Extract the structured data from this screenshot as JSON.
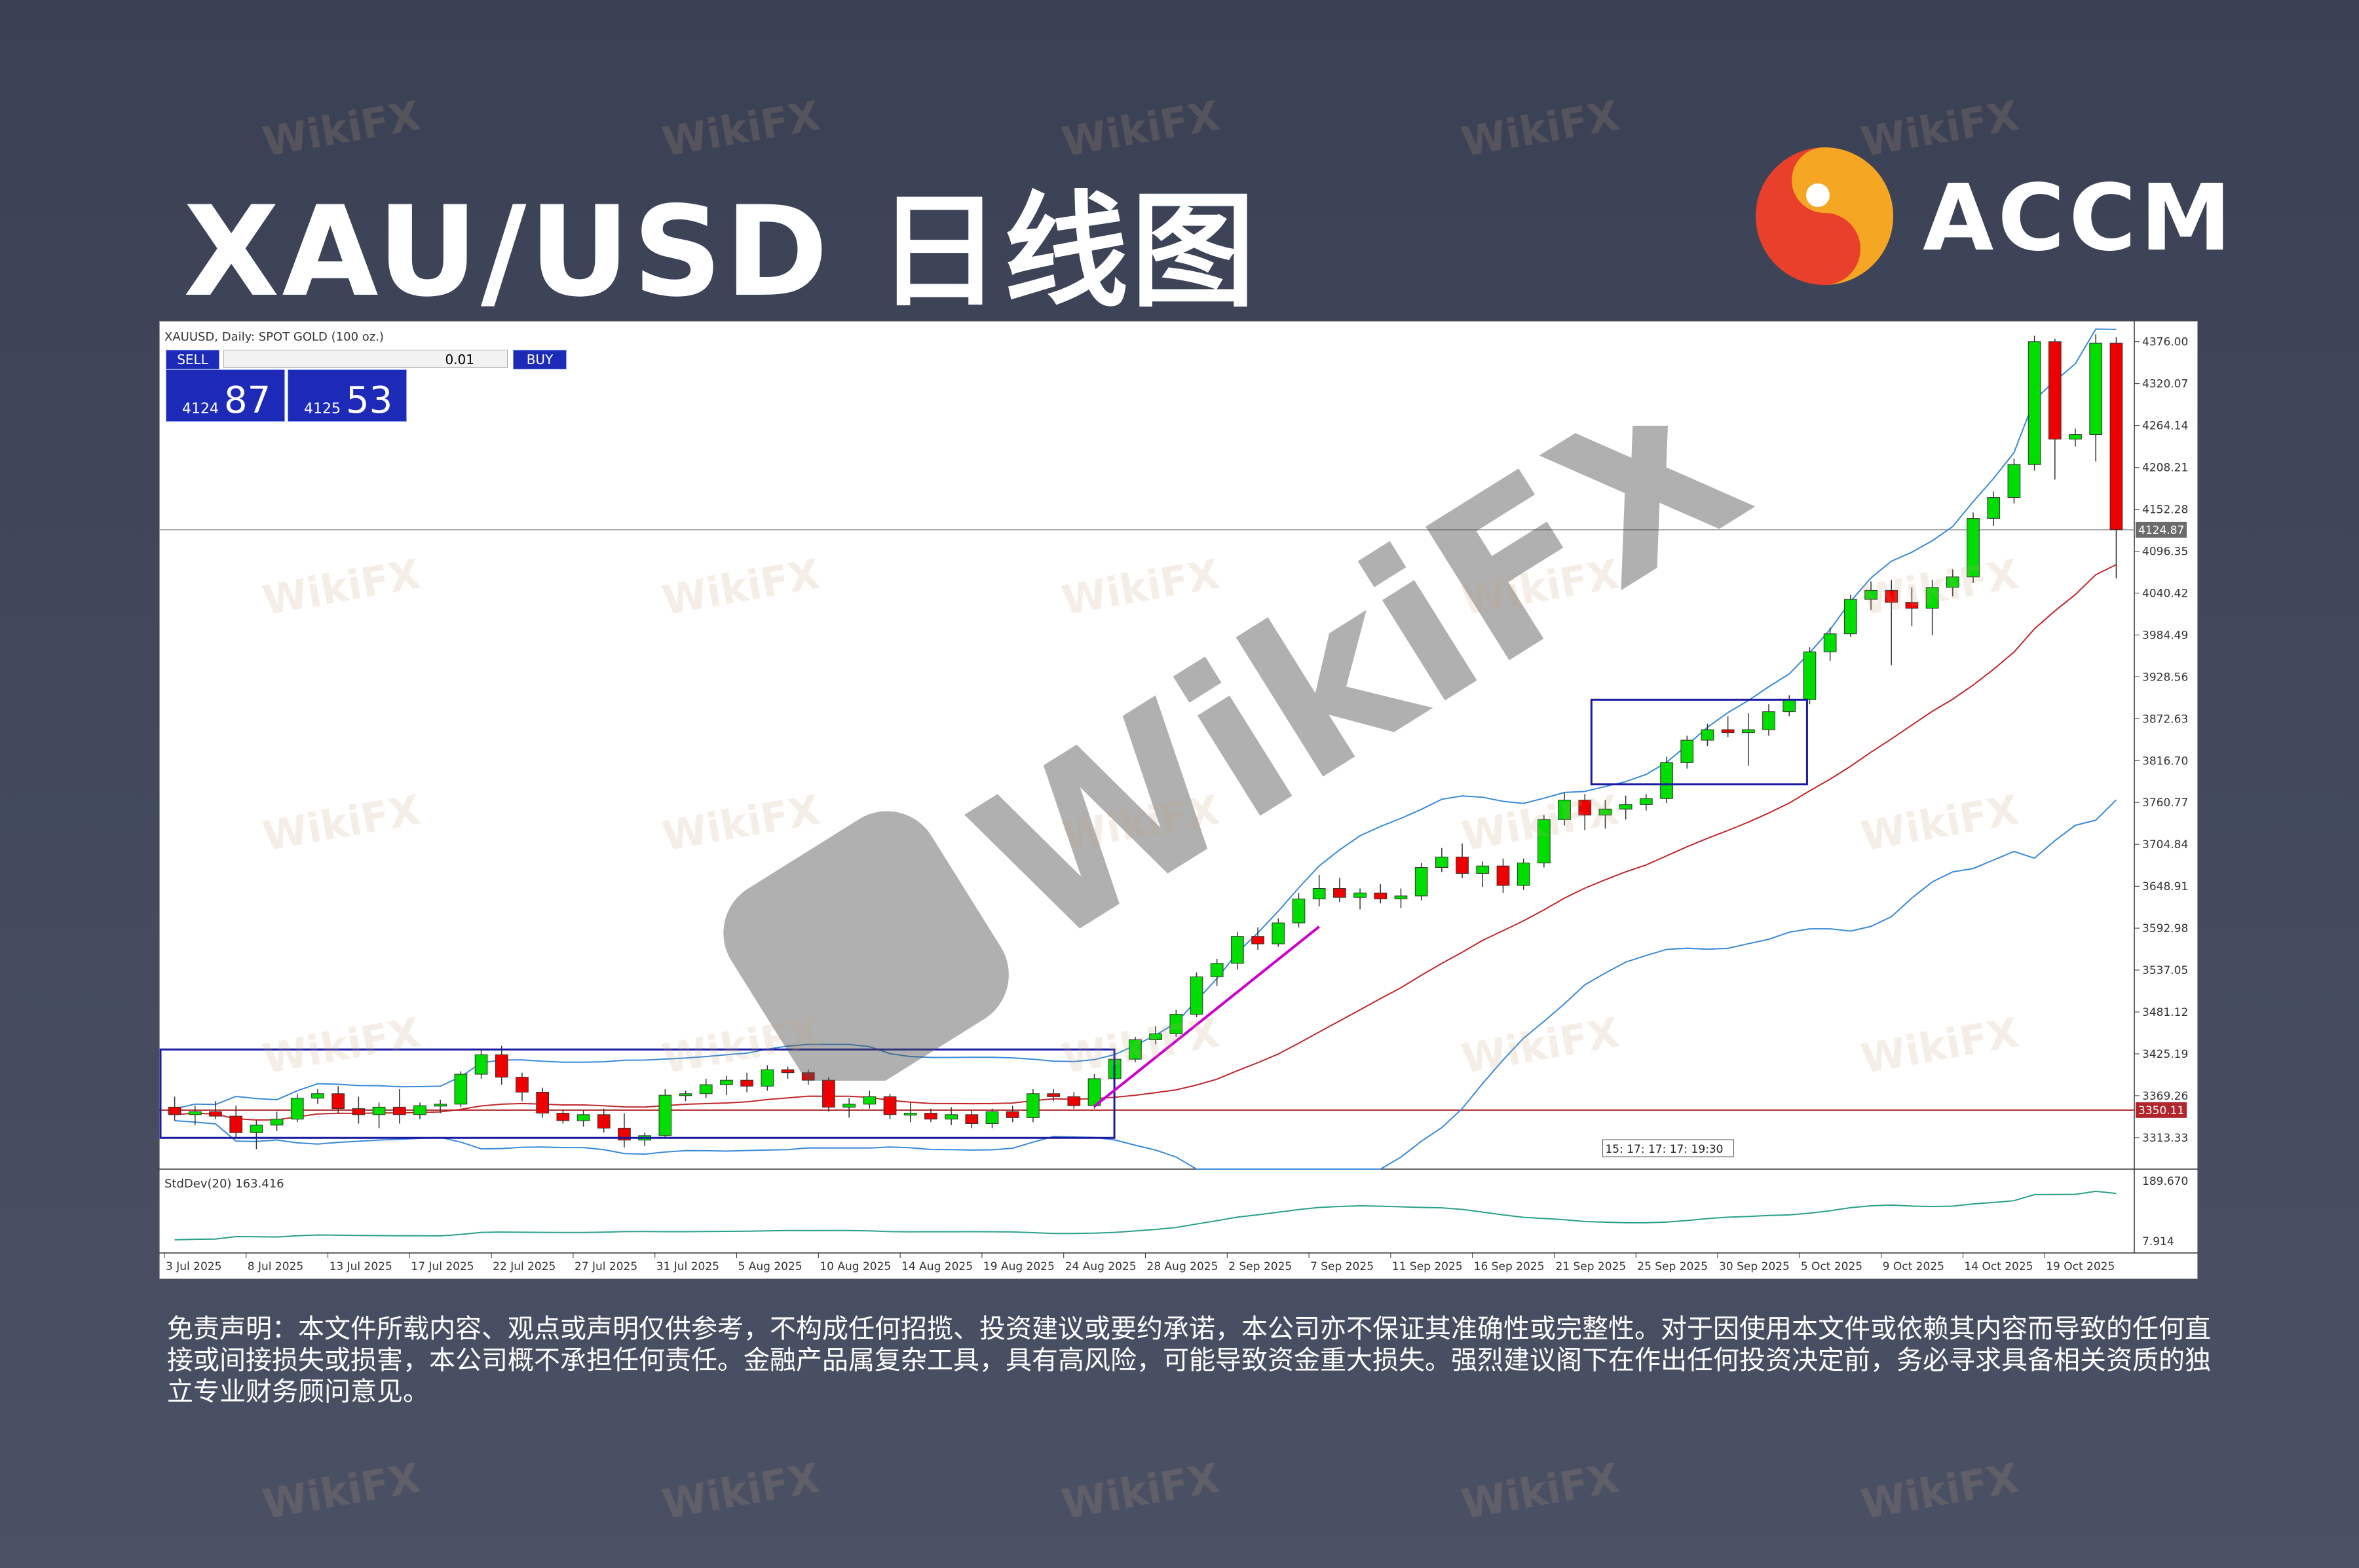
{
  "header": {
    "title": "XAU/USD 日线图",
    "brand": "ACCM"
  },
  "watermark_text": "WikiFX",
  "terminal": {
    "symbol_line": "XAUUSD, Daily: SPOT GOLD (100 oz.)",
    "sell_label": "SELL",
    "buy_label": "BUY",
    "lot": "0.01",
    "sell_small": "4124",
    "sell_big": "87",
    "buy_small": "4125",
    "buy_big": "53"
  },
  "chart_data": {
    "type": "candlestick",
    "title": "XAUUSD, Daily: SPOT GOLD (100 oz.)",
    "x_tick_labels": [
      "3 Jul 2025",
      "8 Jul 2025",
      "13 Jul 2025",
      "17 Jul 2025",
      "22 Jul 2025",
      "27 Jul 2025",
      "31 Jul 2025",
      "5 Aug 2025",
      "10 Aug 2025",
      "14 Aug 2025",
      "19 Aug 2025",
      "24 Aug 2025",
      "28 Aug 2025",
      "2 Sep 2025",
      "7 Sep 2025",
      "11 Sep 2025",
      "16 Sep 2025",
      "21 Sep 2025",
      "25 Sep 2025",
      "30 Sep 2025",
      "5 Oct 2025",
      "9 Oct 2025",
      "14 Oct 2025",
      "19 Oct 2025"
    ],
    "y_tick_labels": [
      "4376.00",
      "4320.07",
      "4264.14",
      "4208.21",
      "4152.28",
      "4096.35",
      "4040.42",
      "3984.49",
      "3928.56",
      "3872.63",
      "3816.70",
      "3760.77",
      "3704.84",
      "3648.91",
      "3592.98",
      "3537.05",
      "3481.12",
      "3425.19",
      "3369.26",
      "3313.33"
    ],
    "ylim": [
      3280,
      4395
    ],
    "current_price": 4124.87,
    "current_price_label": "4124.87",
    "support_level": 3350.11,
    "support_label": "3350.11",
    "time_marker_text": "15: 17: 17: 17: 19:30",
    "ohlc": [
      [
        3354,
        3368,
        3336,
        3344
      ],
      [
        3344,
        3356,
        3330,
        3348
      ],
      [
        3348,
        3362,
        3338,
        3342
      ],
      [
        3342,
        3356,
        3312,
        3320
      ],
      [
        3320,
        3336,
        3298,
        3330
      ],
      [
        3330,
        3348,
        3322,
        3338
      ],
      [
        3338,
        3372,
        3334,
        3366
      ],
      [
        3366,
        3378,
        3358,
        3372
      ],
      [
        3372,
        3382,
        3346,
        3352
      ],
      [
        3352,
        3368,
        3332,
        3344
      ],
      [
        3344,
        3360,
        3326,
        3354
      ],
      [
        3354,
        3378,
        3332,
        3344
      ],
      [
        3344,
        3360,
        3338,
        3356
      ],
      [
        3356,
        3364,
        3346,
        3358
      ],
      [
        3358,
        3402,
        3354,
        3398
      ],
      [
        3398,
        3432,
        3392,
        3424
      ],
      [
        3424,
        3436,
        3384,
        3394
      ],
      [
        3394,
        3400,
        3362,
        3374
      ],
      [
        3374,
        3380,
        3340,
        3346
      ],
      [
        3346,
        3350,
        3332,
        3336
      ],
      [
        3336,
        3350,
        3328,
        3344
      ],
      [
        3344,
        3352,
        3320,
        3326
      ],
      [
        3326,
        3346,
        3300,
        3310
      ],
      [
        3310,
        3320,
        3302,
        3316
      ],
      [
        3316,
        3378,
        3312,
        3370
      ],
      [
        3370,
        3376,
        3362,
        3372
      ],
      [
        3372,
        3392,
        3366,
        3384
      ],
      [
        3384,
        3396,
        3370,
        3390
      ],
      [
        3390,
        3400,
        3374,
        3382
      ],
      [
        3382,
        3410,
        3376,
        3404
      ],
      [
        3404,
        3408,
        3392,
        3400
      ],
      [
        3400,
        3404,
        3384,
        3390
      ],
      [
        3390,
        3394,
        3348,
        3354
      ],
      [
        3354,
        3366,
        3340,
        3358
      ],
      [
        3358,
        3376,
        3352,
        3368
      ],
      [
        3368,
        3372,
        3338,
        3344
      ],
      [
        3344,
        3360,
        3334,
        3346
      ],
      [
        3346,
        3352,
        3334,
        3338
      ],
      [
        3338,
        3354,
        3330,
        3344
      ],
      [
        3344,
        3350,
        3326,
        3332
      ],
      [
        3332,
        3352,
        3326,
        3348
      ],
      [
        3348,
        3356,
        3334,
        3340
      ],
      [
        3340,
        3378,
        3334,
        3372
      ],
      [
        3372,
        3378,
        3362,
        3368
      ],
      [
        3368,
        3374,
        3352,
        3356
      ],
      [
        3356,
        3398,
        3352,
        3392
      ],
      [
        3392,
        3422,
        3388,
        3418
      ],
      [
        3418,
        3448,
        3414,
        3444
      ],
      [
        3444,
        3462,
        3438,
        3452
      ],
      [
        3452,
        3484,
        3448,
        3478
      ],
      [
        3478,
        3534,
        3474,
        3528
      ],
      [
        3528,
        3552,
        3516,
        3546
      ],
      [
        3546,
        3588,
        3538,
        3582
      ],
      [
        3582,
        3594,
        3564,
        3572
      ],
      [
        3572,
        3606,
        3568,
        3600
      ],
      [
        3600,
        3640,
        3594,
        3632
      ],
      [
        3632,
        3664,
        3622,
        3646
      ],
      [
        3646,
        3660,
        3628,
        3634
      ],
      [
        3634,
        3646,
        3618,
        3640
      ],
      [
        3640,
        3652,
        3626,
        3632
      ],
      [
        3632,
        3646,
        3620,
        3636
      ],
      [
        3636,
        3680,
        3630,
        3674
      ],
      [
        3674,
        3700,
        3668,
        3688
      ],
      [
        3688,
        3706,
        3660,
        3666
      ],
      [
        3666,
        3682,
        3648,
        3676
      ],
      [
        3676,
        3686,
        3640,
        3650
      ],
      [
        3650,
        3686,
        3644,
        3680
      ],
      [
        3680,
        3744,
        3674,
        3738
      ],
      [
        3738,
        3774,
        3730,
        3764
      ],
      [
        3764,
        3772,
        3724,
        3744
      ],
      [
        3744,
        3764,
        3726,
        3752
      ],
      [
        3752,
        3770,
        3738,
        3758
      ],
      [
        3758,
        3772,
        3750,
        3766
      ],
      [
        3766,
        3822,
        3760,
        3814
      ],
      [
        3814,
        3850,
        3806,
        3844
      ],
      [
        3844,
        3866,
        3836,
        3858
      ],
      [
        3858,
        3876,
        3848,
        3854
      ],
      [
        3854,
        3880,
        3810,
        3858
      ],
      [
        3858,
        3892,
        3850,
        3882
      ],
      [
        3882,
        3904,
        3876,
        3898
      ],
      [
        3898,
        3968,
        3892,
        3962
      ],
      [
        3962,
        3994,
        3950,
        3986
      ],
      [
        3986,
        4038,
        3982,
        4032
      ],
      [
        4032,
        4056,
        4018,
        4044
      ],
      [
        4044,
        4058,
        3944,
        4028
      ],
      [
        4028,
        4048,
        3996,
        4020
      ],
      [
        4020,
        4058,
        3984,
        4048
      ],
      [
        4048,
        4072,
        4036,
        4062
      ],
      [
        4062,
        4148,
        4054,
        4140
      ],
      [
        4140,
        4176,
        4130,
        4168
      ],
      [
        4168,
        4220,
        4160,
        4212
      ],
      [
        4212,
        4384,
        4204,
        4376
      ],
      [
        4376,
        4380,
        4192,
        4246
      ],
      [
        4246,
        4260,
        4236,
        4252
      ],
      [
        4252,
        4386,
        4216,
        4374
      ],
      [
        4374,
        4382,
        4060,
        4125
      ]
    ],
    "indicators": {
      "bollinger_bands": "20",
      "moving_average": "red mid-line",
      "stddev_label": "StdDev(20) 163.416",
      "stddev_ylim_labels": [
        "189.670",
        "7.914"
      ]
    },
    "annotations": [
      {
        "type": "rectangle",
        "color": "#1a1aa0",
        "from": "3 Jul 2025",
        "to": "25 Aug 2025",
        "range": [
          3313,
          3431
        ]
      },
      {
        "type": "rectangle",
        "color": "#1a1aa0",
        "from": "22 Sep 2025",
        "to": "3 Oct 2025",
        "range": [
          3785,
          3898
        ]
      },
      {
        "type": "trendline",
        "color": "#cc00cc",
        "from_date": "26 Aug 2025",
        "to_date": "5 Sep 2025"
      }
    ],
    "colors": {
      "up": "#00dd00",
      "down": "#ee0000",
      "band": "#3a8ad8",
      "ma": "#c0282c",
      "stddev": "#2aa08a"
    }
  },
  "disclaimer": "免责声明：本文件所载内容、观点或声明仅供参考，不构成任何招揽、投资建议或要约承诺，本公司亦不保证其准确性或完整性。对于因使用本文件或依赖其内容而导致的任何直接或间接损失或损害，本公司概不承担任何责任。金融产品属复杂工具，具有高风险，可能导致资金重大损失。强烈建议阁下在作出任何投资决定前，务必寻求具备相关资质的独立专业财务顾问意见。"
}
